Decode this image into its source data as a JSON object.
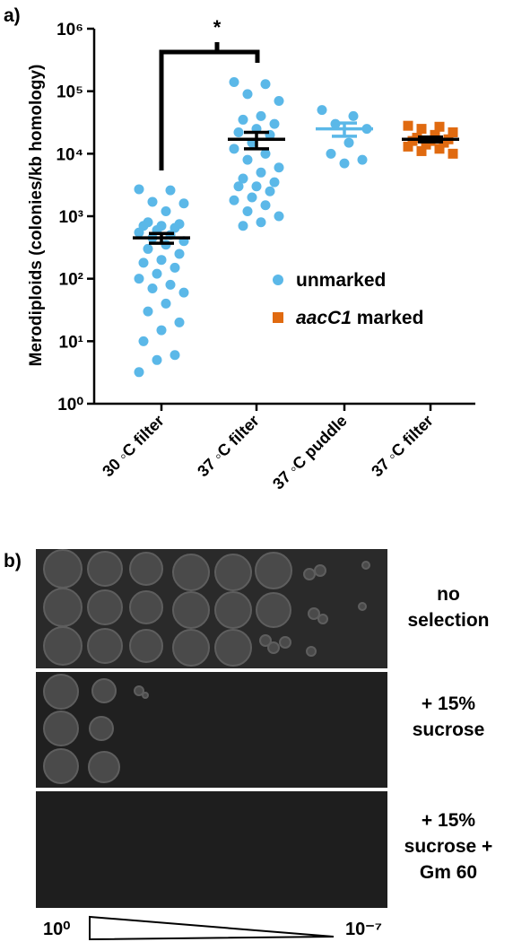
{
  "chart_data": {
    "type": "scatter",
    "panel_label": "a)",
    "ylabel": "Merodiploids (colonies/kb homology)",
    "categories": [
      "30 ◦C filter",
      "37 ◦C filter",
      "37 ◦C puddle",
      "37 ◦C filter"
    ],
    "ylog": true,
    "ylim": [
      1,
      1000000
    ],
    "yticks": [
      {
        "value": 1,
        "label": "10⁰"
      },
      {
        "value": 10,
        "label": "10¹"
      },
      {
        "value": 100,
        "label": "10²"
      },
      {
        "value": 1000,
        "label": "10³"
      },
      {
        "value": 10000,
        "label": "10⁴"
      },
      {
        "value": 100000,
        "label": "10⁵"
      },
      {
        "value": 1000000,
        "label": "10⁶"
      }
    ],
    "series": [
      {
        "name": "unmarked",
        "color": "#5bb8e8",
        "marker": "circle",
        "values": [
          [
            2700,
            2600,
            1700,
            1600,
            1200,
            800,
            750,
            700,
            700,
            650,
            600,
            550,
            500,
            450,
            400,
            350,
            300,
            250,
            200,
            180,
            150,
            120,
            100,
            80,
            70,
            60,
            40,
            30,
            20,
            15,
            10,
            6,
            5,
            3.2
          ],
          [
            140000,
            130000,
            90000,
            70000,
            40000,
            35000,
            30000,
            25000,
            22000,
            20000,
            15000,
            12000,
            10000,
            8000,
            6000,
            5000,
            4000,
            3500,
            3000,
            3000,
            2500,
            2000,
            1800,
            1500,
            1200,
            1000,
            800,
            700
          ],
          [
            50000,
            40000,
            30000,
            25000,
            15000,
            10000,
            8000,
            7000
          ],
          null
        ],
        "means": [
          450,
          17000,
          25000,
          null
        ],
        "sem": [
          80,
          5000,
          6000,
          null
        ]
      },
      {
        "name": "aacC1 marked",
        "color": "#e06a10",
        "marker": "square",
        "values": [
          null,
          null,
          null,
          [
            28000,
            27000,
            25000,
            22000,
            20000,
            18000,
            17000,
            16000,
            16000,
            15000,
            14000,
            13000,
            12000,
            11000,
            10000
          ]
        ],
        "means": [
          null,
          null,
          null,
          17000
        ],
        "sem": [
          null,
          null,
          null,
          1500
        ]
      }
    ],
    "annotation": "*"
  },
  "plate_panel": {
    "panel_label": "b)",
    "conditions": [
      "no selection",
      "+ 15% sucrose",
      "+ 15% sucrose + Gm 60"
    ],
    "dilution_start": "10⁰",
    "dilution_end": "10⁻⁷"
  }
}
